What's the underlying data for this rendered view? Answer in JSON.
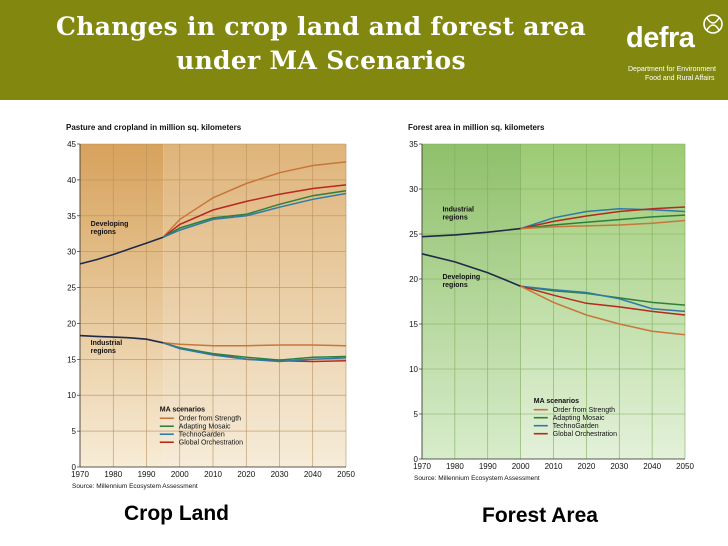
{
  "header": {
    "title_line1": "Changes in crop land and forest area",
    "title_line2": "under MA Scenarios",
    "logo_word": "defra",
    "logo_sub_line1": "Department for Environment",
    "logo_sub_line2": "Food and Rural Affairs",
    "bg_color": "#82880f"
  },
  "captions": {
    "left": "Crop Land",
    "right": "Forest Area"
  },
  "chart_data": [
    {
      "type": "line",
      "title": "Pasture and cropland in million sq. kilometers",
      "source": "Source: Millennium Ecosystem Assessment",
      "xlim": [
        1970,
        2050
      ],
      "ylim": [
        0,
        45
      ],
      "xticks": [
        1970,
        1980,
        1990,
        2000,
        2010,
        2020,
        2030,
        2040,
        2050
      ],
      "yticks": [
        0,
        5,
        10,
        15,
        20,
        25,
        30,
        35,
        40,
        45
      ],
      "split_year": 1995,
      "region_labels": [
        {
          "lines": [
            "Developing",
            "regions"
          ],
          "x": 1972,
          "y": 33.6
        },
        {
          "lines": [
            "Industrial",
            "regions"
          ],
          "x": 1972,
          "y": 17.0
        }
      ],
      "legend_title": "MA scenarios",
      "legend": [
        {
          "name": "Order from Strength",
          "color": "#c8763a"
        },
        {
          "name": "Adapting Mosaic",
          "color": "#2f7f3c"
        },
        {
          "name": "TechnoGarden",
          "color": "#2d7aa8"
        },
        {
          "name": "Global Orchestration",
          "color": "#b8281e"
        }
      ],
      "historical": [
        {
          "group": "Developing regions",
          "x": [
            1970,
            1975,
            1980,
            1985,
            1990,
            1995
          ],
          "y": [
            28.3,
            28.9,
            29.6,
            30.4,
            31.2,
            32.0
          ]
        },
        {
          "group": "Industrial regions",
          "x": [
            1970,
            1975,
            1980,
            1985,
            1990,
            1995
          ],
          "y": [
            18.3,
            18.2,
            18.1,
            18.0,
            17.8,
            17.3
          ]
        }
      ],
      "series": [
        {
          "name": "Order from Strength",
          "group": "Developing",
          "x": [
            1995,
            2000,
            2010,
            2020,
            2030,
            2040,
            2050
          ],
          "y": [
            32.0,
            34.5,
            37.5,
            39.5,
            41.0,
            42.0,
            42.5
          ]
        },
        {
          "name": "Global Orchestration",
          "group": "Developing",
          "x": [
            1995,
            2000,
            2010,
            2020,
            2030,
            2040,
            2050
          ],
          "y": [
            32.0,
            33.8,
            35.8,
            37.0,
            38.0,
            38.8,
            39.3
          ]
        },
        {
          "name": "Adapting Mosaic",
          "group": "Developing",
          "x": [
            1995,
            2000,
            2010,
            2020,
            2030,
            2040,
            2050
          ],
          "y": [
            32.0,
            33.3,
            34.7,
            35.2,
            36.6,
            37.8,
            38.5
          ]
        },
        {
          "name": "TechnoGarden",
          "group": "Developing",
          "x": [
            1995,
            2000,
            2010,
            2020,
            2030,
            2040,
            2050
          ],
          "y": [
            32.0,
            33.0,
            34.5,
            35.0,
            36.2,
            37.3,
            38.1
          ]
        },
        {
          "name": "Order from Strength",
          "group": "Industrial",
          "x": [
            1995,
            2000,
            2010,
            2020,
            2030,
            2040,
            2050
          ],
          "y": [
            17.3,
            17.1,
            16.9,
            16.9,
            17.0,
            17.0,
            16.9
          ]
        },
        {
          "name": "Global Orchestration",
          "group": "Industrial",
          "x": [
            1995,
            2000,
            2010,
            2020,
            2030,
            2040,
            2050
          ],
          "y": [
            17.3,
            16.6,
            15.7,
            15.0,
            14.8,
            14.7,
            14.8
          ]
        },
        {
          "name": "Adapting Mosaic",
          "group": "Industrial",
          "x": [
            1995,
            2000,
            2010,
            2020,
            2030,
            2040,
            2050
          ],
          "y": [
            17.3,
            16.6,
            15.8,
            15.3,
            14.9,
            15.3,
            15.4
          ]
        },
        {
          "name": "TechnoGarden",
          "group": "Industrial",
          "x": [
            1995,
            2000,
            2010,
            2020,
            2030,
            2040,
            2050
          ],
          "y": [
            17.3,
            16.5,
            15.6,
            15.0,
            14.7,
            15.0,
            15.2
          ]
        }
      ]
    },
    {
      "type": "line",
      "title": "Forest area in million sq. kilometers",
      "source": "Source: Millennium Ecosystem Assessment",
      "xlim": [
        1970,
        2050
      ],
      "ylim": [
        0,
        35
      ],
      "xticks": [
        1970,
        1980,
        1990,
        2000,
        2010,
        2020,
        2030,
        2040,
        2050
      ],
      "yticks": [
        0,
        5,
        10,
        15,
        20,
        25,
        30,
        35
      ],
      "split_year": 2000,
      "region_labels": [
        {
          "lines": [
            "Industrial",
            "regions"
          ],
          "x": 1975,
          "y": 27.5
        },
        {
          "lines": [
            "Developing",
            "regions"
          ],
          "x": 1975,
          "y": 20.0
        }
      ],
      "legend_title": "MA scenarios",
      "legend": [
        {
          "name": "Order from Strength",
          "color": "#c8763a"
        },
        {
          "name": "Adapting Mosaic",
          "color": "#2f7f3c"
        },
        {
          "name": "TechnoGarden",
          "color": "#2d7aa8"
        },
        {
          "name": "Global Orchestration",
          "color": "#b8281e"
        }
      ],
      "historical": [
        {
          "group": "Industrial regions",
          "x": [
            1970,
            1980,
            1990,
            2000
          ],
          "y": [
            24.7,
            24.9,
            25.2,
            25.6
          ]
        },
        {
          "group": "Developing regions",
          "x": [
            1970,
            1980,
            1990,
            2000
          ],
          "y": [
            22.8,
            21.9,
            20.7,
            19.2
          ]
        }
      ],
      "series": [
        {
          "name": "TechnoGarden",
          "group": "Industrial",
          "x": [
            2000,
            2010,
            2020,
            2030,
            2040,
            2050
          ],
          "y": [
            25.6,
            26.8,
            27.5,
            27.8,
            27.7,
            27.5
          ]
        },
        {
          "name": "Global Orchestration",
          "group": "Industrial",
          "x": [
            2000,
            2010,
            2020,
            2030,
            2040,
            2050
          ],
          "y": [
            25.6,
            26.4,
            27.0,
            27.5,
            27.8,
            28.0
          ]
        },
        {
          "name": "Adapting Mosaic",
          "group": "Industrial",
          "x": [
            2000,
            2010,
            2020,
            2030,
            2040,
            2050
          ],
          "y": [
            25.6,
            26.0,
            26.3,
            26.6,
            26.9,
            27.1
          ]
        },
        {
          "name": "Order from Strength",
          "group": "Industrial",
          "x": [
            2000,
            2010,
            2020,
            2030,
            2040,
            2050
          ],
          "y": [
            25.6,
            25.8,
            25.9,
            26.0,
            26.2,
            26.5
          ]
        },
        {
          "name": "Adapting Mosaic",
          "group": "Developing",
          "x": [
            2000,
            2010,
            2020,
            2030,
            2040,
            2050
          ],
          "y": [
            19.2,
            18.7,
            18.4,
            17.9,
            17.4,
            17.1
          ]
        },
        {
          "name": "TechnoGarden",
          "group": "Developing",
          "x": [
            2000,
            2010,
            2020,
            2030,
            2040,
            2050
          ],
          "y": [
            19.2,
            18.8,
            18.5,
            17.8,
            16.7,
            16.4
          ]
        },
        {
          "name": "Global Orchestration",
          "group": "Developing",
          "x": [
            2000,
            2010,
            2020,
            2030,
            2040,
            2050
          ],
          "y": [
            19.2,
            18.2,
            17.3,
            16.9,
            16.4,
            16.0
          ]
        },
        {
          "name": "Order from Strength",
          "group": "Developing",
          "x": [
            2000,
            2010,
            2020,
            2030,
            2040,
            2050
          ],
          "y": [
            19.2,
            17.4,
            16.0,
            15.0,
            14.2,
            13.8
          ]
        }
      ]
    }
  ]
}
